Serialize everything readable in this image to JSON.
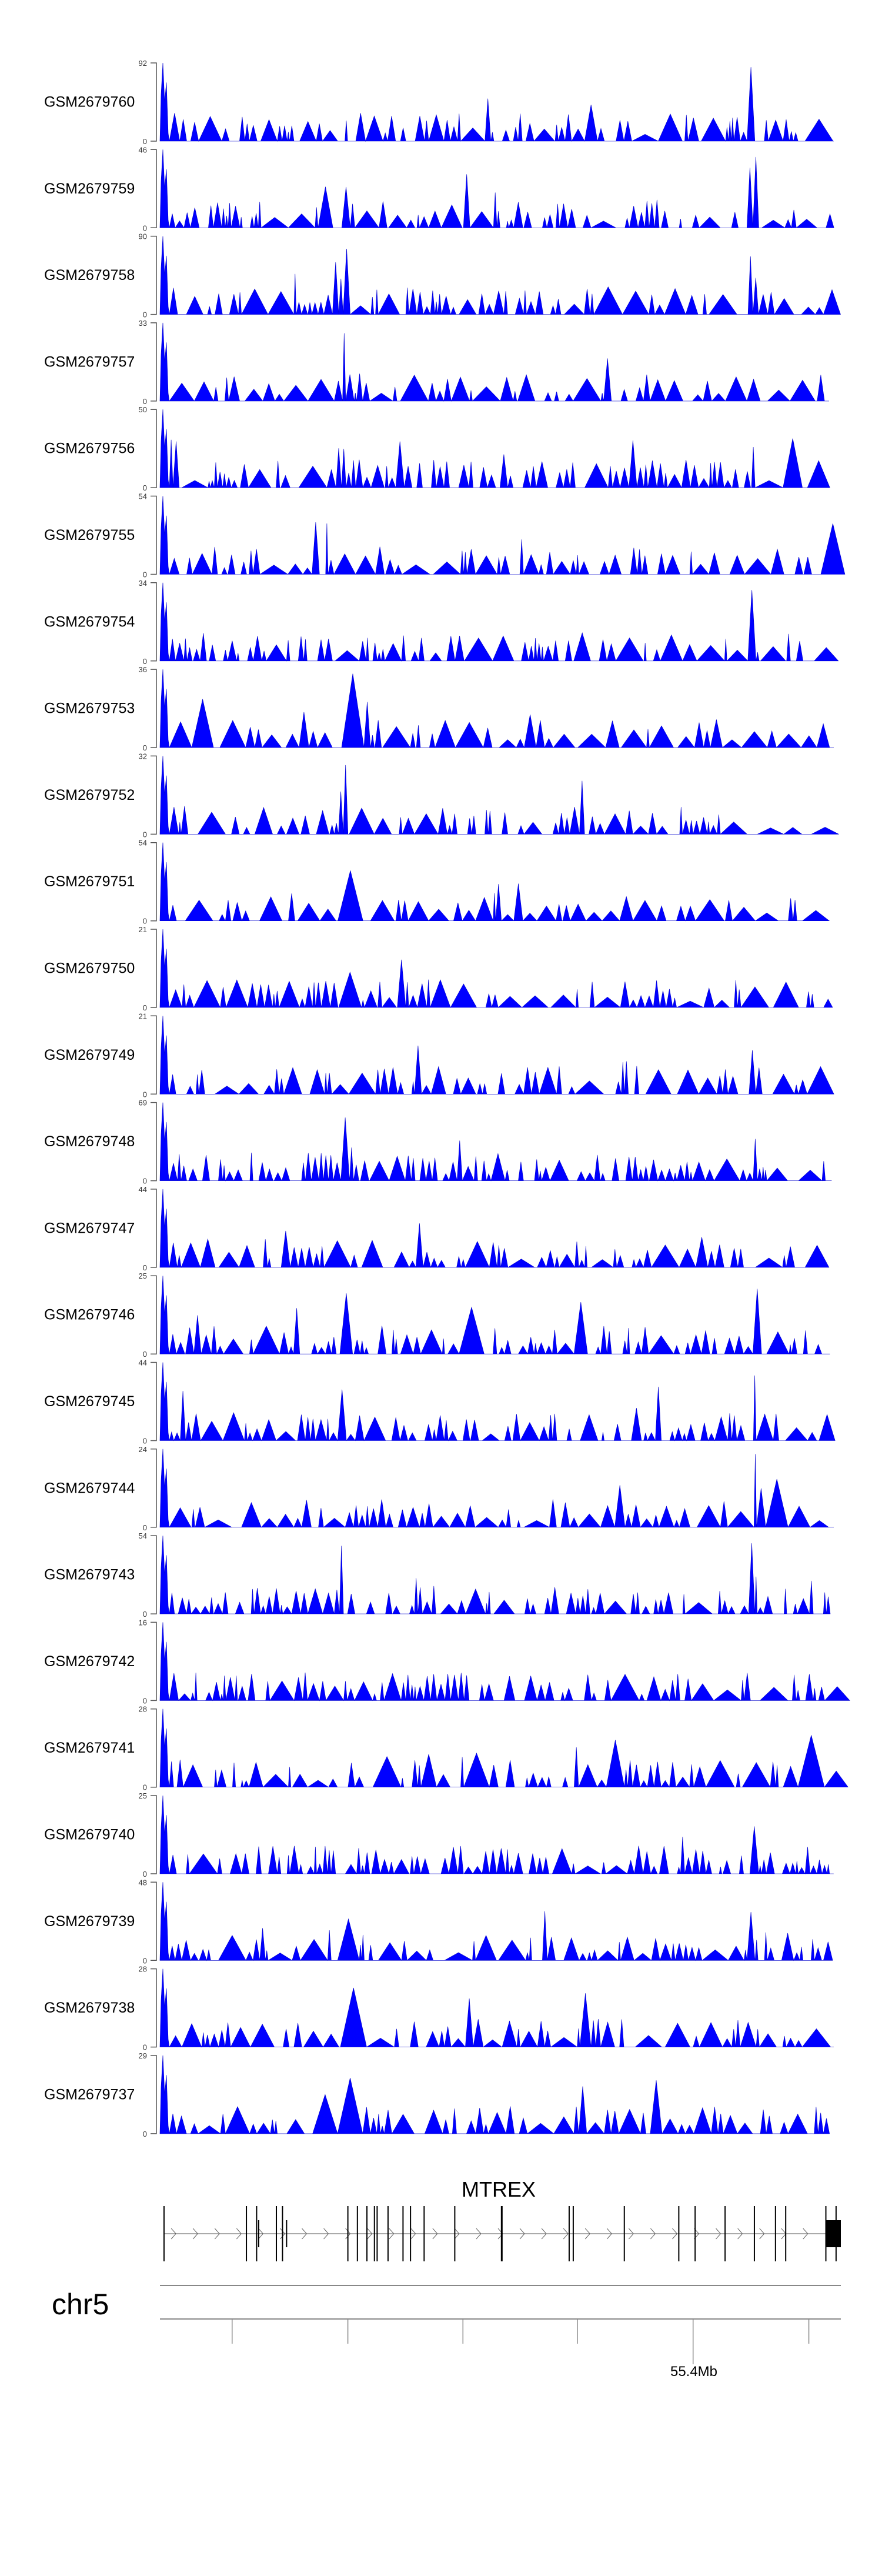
{
  "chart_data": {
    "type": "area",
    "title": "",
    "fill_color": "#0000ff",
    "tracks": [
      {
        "name": "GSM2679760",
        "ymin": 0,
        "ymax": 92
      },
      {
        "name": "GSM2679759",
        "ymin": 0,
        "ymax": 46
      },
      {
        "name": "GSM2679758",
        "ymin": 0,
        "ymax": 90
      },
      {
        "name": "GSM2679757",
        "ymin": 0,
        "ymax": 33
      },
      {
        "name": "GSM2679756",
        "ymin": 0,
        "ymax": 50
      },
      {
        "name": "GSM2679755",
        "ymin": 0,
        "ymax": 54
      },
      {
        "name": "GSM2679754",
        "ymin": 0,
        "ymax": 34
      },
      {
        "name": "GSM2679753",
        "ymin": 0,
        "ymax": 36
      },
      {
        "name": "GSM2679752",
        "ymin": 0,
        "ymax": 32
      },
      {
        "name": "GSM2679751",
        "ymin": 0,
        "ymax": 54
      },
      {
        "name": "GSM2679750",
        "ymin": 0,
        "ymax": 21
      },
      {
        "name": "GSM2679749",
        "ymin": 0,
        "ymax": 21
      },
      {
        "name": "GSM2679748",
        "ymin": 0,
        "ymax": 69
      },
      {
        "name": "GSM2679747",
        "ymin": 0,
        "ymax": 44
      },
      {
        "name": "GSM2679746",
        "ymin": 0,
        "ymax": 25
      },
      {
        "name": "GSM2679745",
        "ymin": 0,
        "ymax": 44
      },
      {
        "name": "GSM2679744",
        "ymin": 0,
        "ymax": 24
      },
      {
        "name": "GSM2679743",
        "ymin": 0,
        "ymax": 54
      },
      {
        "name": "GSM2679742",
        "ymin": 0,
        "ymax": 16
      },
      {
        "name": "GSM2679741",
        "ymin": 0,
        "ymax": 28
      },
      {
        "name": "GSM2679740",
        "ymin": 0,
        "ymax": 25
      },
      {
        "name": "GSM2679739",
        "ymin": 0,
        "ymax": 48
      },
      {
        "name": "GSM2679738",
        "ymin": 0,
        "ymax": 28
      },
      {
        "name": "GSM2679737",
        "ymin": 0,
        "ymax": 29
      }
    ],
    "gene": {
      "name": "MTREX",
      "strand": "+"
    },
    "chromosome": "chr5",
    "axis_label": "55.4Mb"
  }
}
